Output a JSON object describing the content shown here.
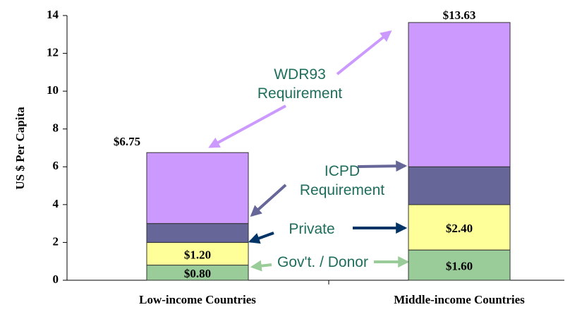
{
  "chart_data": {
    "type": "bar",
    "stacked": true,
    "y_label": "US $ Per Capita",
    "categories": [
      "Low-income Countries",
      "Middle-income Countries"
    ],
    "series": [
      {
        "name": "Gov't. / Donor",
        "color": "#99cc99",
        "values": [
          0.8,
          1.6
        ],
        "value_labels": [
          "$0.80",
          "$1.60"
        ]
      },
      {
        "name": "Private",
        "color": "#ffff99",
        "values": [
          1.2,
          2.4
        ],
        "value_labels": [
          "$1.20",
          "$2.40"
        ]
      },
      {
        "name": "ICPD Requirement",
        "color": "#666699",
        "values": [
          1.0,
          2.0
        ]
      },
      {
        "name": "WDR93 Requirement",
        "color": "#cc99ff",
        "values": [
          3.75,
          7.63
        ]
      }
    ],
    "totals": [
      6.75,
      13.63
    ],
    "total_labels": [
      "$6.75",
      "$13.63"
    ],
    "ylim": [
      0,
      14
    ],
    "yticks": [
      0,
      2,
      4,
      6,
      8,
      10,
      12,
      14
    ]
  }
}
